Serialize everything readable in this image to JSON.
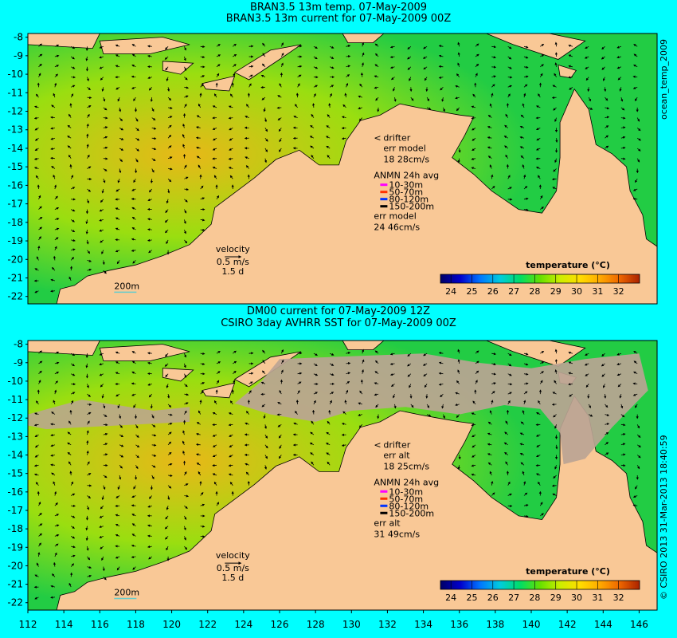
{
  "top_panel": {
    "title_line1": "BRAN3.5 13m temp. 07-May-2009",
    "title_line2": "BRAN3.5 13m current for 07-May-2009 00Z",
    "side_label": "ocean_temp_2009",
    "drifter_label": "drifter",
    "err_label": "err model",
    "err_value": "18 28cm/s",
    "anmn_title": "ANMN 24h avg",
    "anmn_depths": [
      "10-30m",
      "50-70m",
      "80-120m",
      "150-200m"
    ],
    "anmn_err_label": "err model",
    "anmn_err_value": "24 46cm/s",
    "velocity_label": "velocity",
    "velocity_value": "0.5 m/s",
    "velocity_days": "1.5 d",
    "isobath_label": "200m",
    "colorbar_title": "temperature (°C)"
  },
  "bottom_panel": {
    "title_line1": "DM00 current for 07-May-2009 12Z",
    "title_line2": "CSIRO 3day AVHRR SST for 07-May-2009 00Z",
    "side_label": "© CSIRO 2013  31-Mar-2013 18:40:59",
    "drifter_label": "drifter",
    "err_label": "err alt",
    "err_value": "18 25cm/s",
    "anmn_title": "ANMN 24h avg",
    "anmn_depths": [
      "10-30m",
      "50-70m",
      "80-120m",
      "150-200m"
    ],
    "anmn_err_label": "err alt",
    "anmn_err_value": "31 49cm/s",
    "velocity_label": "velocity",
    "velocity_value": "0.5 m/s",
    "velocity_days": "1.5 d",
    "isobath_label": "200m",
    "colorbar_title": "temperature (°C)"
  },
  "axes": {
    "lat_ticks": [
      "-8",
      "-9",
      "-10",
      "-11",
      "-12",
      "-13",
      "-14",
      "-15",
      "-16",
      "-17",
      "-18",
      "-19",
      "-20",
      "-21",
      "-22"
    ],
    "lon_ticks": [
      "112",
      "114",
      "116",
      "118",
      "120",
      "122",
      "124",
      "126",
      "128",
      "130",
      "132",
      "134",
      "136",
      "138",
      "140",
      "142",
      "144",
      "146"
    ],
    "lon_range": [
      112,
      147
    ],
    "lat_range": [
      -22.4,
      -7.8
    ]
  },
  "colorbar": {
    "ticks": [
      "24",
      "25",
      "26",
      "27",
      "28",
      "29",
      "30",
      "31",
      "32"
    ],
    "range": [
      23.5,
      33
    ],
    "stops": [
      "#000066",
      "#0000cc",
      "#0077ff",
      "#00ccdd",
      "#00dd66",
      "#66e000",
      "#ccee00",
      "#ffdd00",
      "#ffaa00",
      "#ee6600",
      "#aa2200"
    ]
  },
  "colors": {
    "background": "#00ffff",
    "land": "#f9c896",
    "cloud": "#bba494",
    "ocean_warm": "#e8b818",
    "ocean_mid": "#9ade10",
    "ocean_cool": "#22cc44",
    "legend_drifter": "#cc00ff",
    "legend_depths": [
      "#ff00ff",
      "#ff3300",
      "#0033ff",
      "#000000"
    ]
  }
}
